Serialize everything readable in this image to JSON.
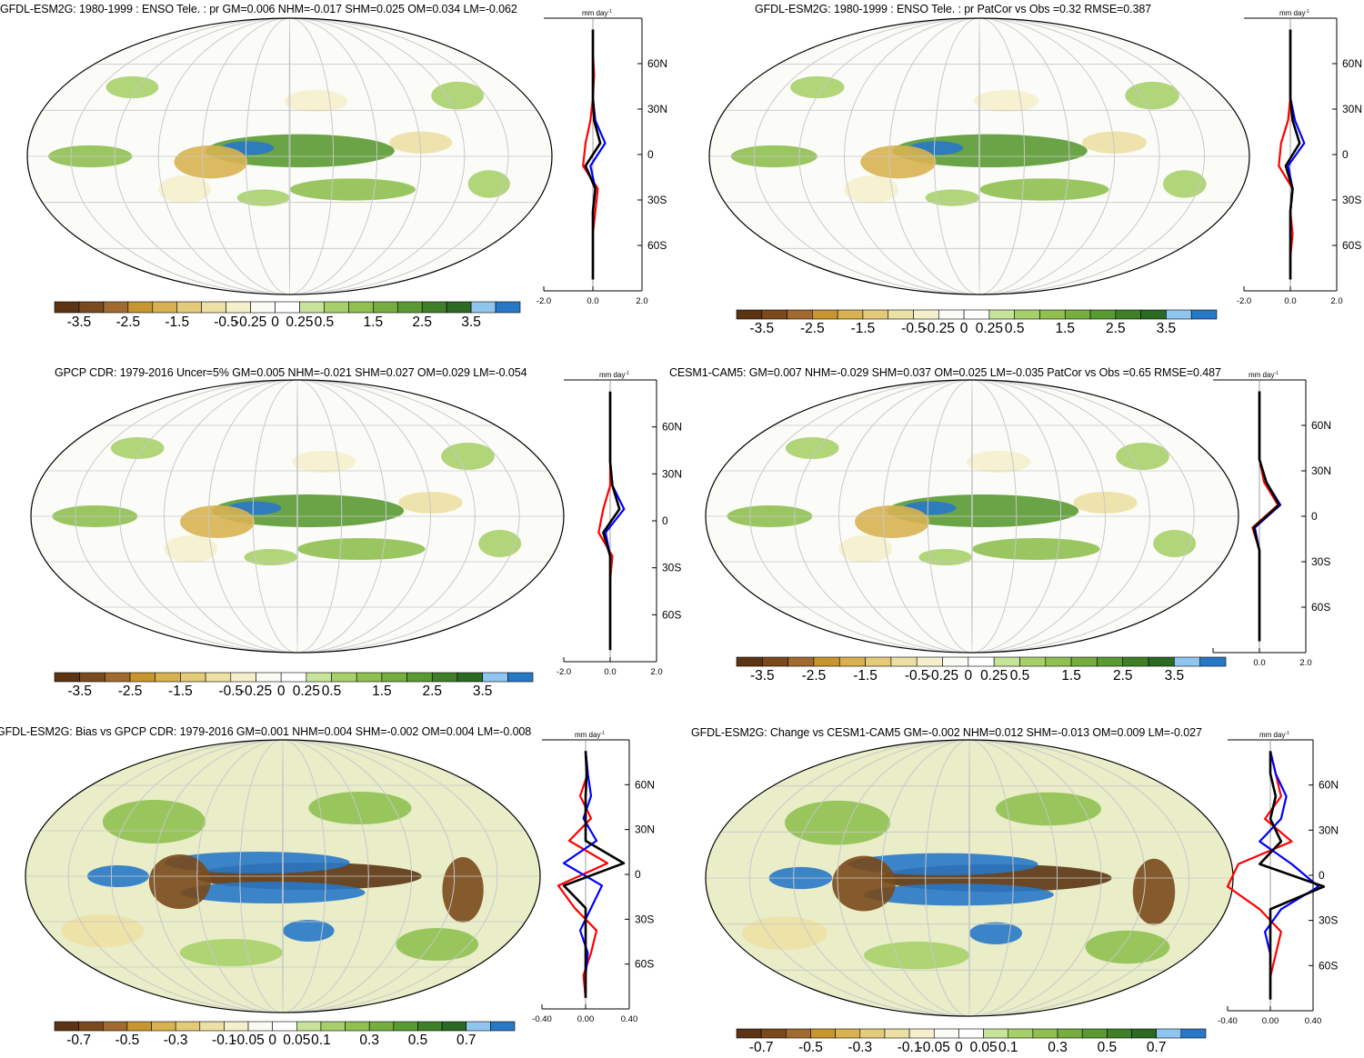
{
  "colors": {
    "palette_colors": [
      "#5c3413",
      "#7a4a1c",
      "#a06a30",
      "#c8962e",
      "#d8b250",
      "#e3cb7a",
      "#ede0a4",
      "#f5efcc",
      "#fbfbf6",
      "#ffffff",
      "#c8e39a",
      "#a8d06a",
      "#8fc050",
      "#75ad3e",
      "#5a9a32",
      "#3f7f28",
      "#2a6a22",
      "#8ec6f0",
      "#2878c8"
    ],
    "ocean_background": "#fbfbf8",
    "coastline": "#000000",
    "grid": "#c8c8c8",
    "profile_red": "#ff0000",
    "profile_blue": "#0000ff",
    "profile_black": "#000000"
  },
  "colorbars": {
    "full": [
      "-3.5",
      "-2.5",
      "-1.5",
      "-0.5",
      "-0.25",
      "0",
      "0.25",
      "0.5",
      "1.5",
      "2.5",
      "3.5"
    ],
    "diff": [
      "-0.7",
      "-0.5",
      "-0.3",
      "-0.1",
      "-0.05",
      "0",
      "0.05",
      "0.1",
      "0.3",
      "0.5",
      "0.7"
    ]
  },
  "profile_axes": {
    "unit": "mm day",
    "unit_exp": "-1",
    "lat_ticks": [
      "60N",
      "30N",
      "0",
      "30S",
      "60S"
    ],
    "x_full": [
      "-2.0",
      "0.0",
      "2.0"
    ],
    "x_diff": [
      "-0.40",
      "0.00",
      "0.40"
    ]
  },
  "chart_data": [
    {
      "type": "heatmap",
      "title": "GFDL-ESM2G: 1980-1999 : ENSO Tele. : pr GM=0.006 NHM=-0.017 SHM=0.025 OM=0.034 LM=-0.062",
      "variable": "pr",
      "colorbar": "full",
      "profile_xlim": [
        -2.0,
        2.0
      ],
      "series": [
        {
          "color": "red",
          "values": [
            0,
            0,
            0.05,
            0,
            -0.1,
            -0.3,
            -0.4,
            0.2,
            0.1,
            0,
            0,
            0
          ]
        },
        {
          "color": "blue",
          "values": [
            0,
            0,
            0,
            0,
            0.1,
            0.5,
            -0.1,
            0.1,
            0,
            0,
            0,
            0
          ]
        },
        {
          "color": "black",
          "values": [
            0,
            0,
            0,
            0,
            0.05,
            0.3,
            -0.3,
            0.1,
            0,
            0,
            0,
            0
          ]
        }
      ]
    },
    {
      "type": "heatmap",
      "title": "GFDL-ESM2G: 1980-1999 : ENSO Tele. : pr PatCor vs Obs =0.32 RMSE=0.387",
      "variable": "pr",
      "colorbar": "full",
      "profile_xlim": [
        -2.0,
        2.0
      ],
      "series": [
        {
          "color": "red",
          "values": [
            0,
            0,
            0,
            0,
            -0.1,
            -0.4,
            -0.5,
            0.1,
            0,
            0.1,
            0,
            0
          ]
        },
        {
          "color": "blue",
          "values": [
            0,
            0,
            0,
            0,
            0.2,
            0.6,
            -0.1,
            0.1,
            0,
            0,
            0,
            0
          ]
        },
        {
          "color": "black",
          "values": [
            0,
            0,
            0,
            0,
            0.1,
            0.4,
            -0.2,
            0.1,
            0,
            0,
            0,
            0
          ]
        }
      ]
    },
    {
      "type": "heatmap",
      "title": "GPCP CDR: 1979-2016 Uncer=5% GM=0.005 NHM=-0.021 SHM=0.027 OM=0.029 LM=-0.054",
      "variable": "pr",
      "colorbar": "full",
      "profile_xlim": [
        -2.0,
        2.0
      ],
      "series": [
        {
          "color": "red",
          "values": [
            0,
            0,
            0,
            0,
            0,
            -0.3,
            -0.5,
            0.1,
            0,
            0,
            0,
            0
          ]
        },
        {
          "color": "blue",
          "values": [
            0,
            0,
            0,
            0,
            0.1,
            0.6,
            -0.2,
            0,
            0,
            0,
            0,
            0
          ]
        },
        {
          "color": "black",
          "values": [
            0,
            0,
            0,
            0,
            0.1,
            0.4,
            -0.3,
            0,
            0,
            0,
            0,
            0
          ]
        }
      ]
    },
    {
      "type": "heatmap",
      "title": "CESM1-CAM5: GM=0.007 NHM=-0.029 SHM=0.037 OM=0.025 LM=-0.035 PatCor vs Obs =0.65 RMSE=0.487",
      "variable": "pr",
      "colorbar": "full",
      "profile_xlim": [
        -2.0,
        2.0
      ],
      "series": [
        {
          "color": "red",
          "values": [
            0,
            0,
            0,
            0,
            0.2,
            0.8,
            -0.3,
            0,
            0,
            0,
            0,
            0
          ]
        },
        {
          "color": "blue",
          "values": [
            0,
            0,
            0,
            0,
            0.3,
            0.9,
            -0.2,
            0,
            0,
            0,
            0,
            0
          ]
        },
        {
          "color": "black",
          "values": [
            0,
            0,
            0,
            0,
            0.3,
            0.85,
            -0.25,
            0,
            0,
            0,
            0,
            0
          ]
        }
      ]
    },
    {
      "type": "heatmap",
      "title": "GFDL-ESM2G: Bias vs GPCP CDR: 1979-2016 GM=0.001 NHM=0.004 SHM=-0.002 OM=0.004 LM=-0.008",
      "variable": "pr",
      "colorbar": "diff",
      "profile_xlim": [
        -0.4,
        0.4
      ],
      "series": [
        {
          "color": "red",
          "values": [
            0,
            0.02,
            -0.05,
            0.05,
            -0.15,
            0.2,
            -0.25,
            -0.1,
            0.1,
            0.05,
            -0.02,
            0
          ]
        },
        {
          "color": "blue",
          "values": [
            0,
            0.02,
            0.05,
            -0.02,
            0.1,
            -0.2,
            0.15,
            0.05,
            -0.05,
            0.02,
            0,
            0
          ]
        },
        {
          "color": "black",
          "values": [
            0,
            0.01,
            0,
            0,
            0,
            0.35,
            -0.2,
            0,
            0,
            0,
            0,
            0
          ]
        }
      ]
    },
    {
      "type": "heatmap",
      "title": "GFDL-ESM2G: Change vs CESM1-CAM5 GM=-0.002 NHM=0.012 SHM=-0.013 OM=0.009 LM=-0.027",
      "variable": "pr",
      "colorbar": "diff",
      "profile_xlim": [
        -0.4,
        0.4
      ],
      "series": [
        {
          "color": "red",
          "values": [
            0,
            0.05,
            0.1,
            -0.05,
            0.2,
            -0.3,
            -0.4,
            -0.1,
            0.1,
            0.05,
            0,
            0
          ]
        },
        {
          "color": "blue",
          "values": [
            0,
            0.05,
            0.15,
            0.1,
            -0.1,
            0.2,
            0.45,
            0.1,
            -0.05,
            0,
            0,
            0
          ]
        },
        {
          "color": "black",
          "values": [
            0,
            0,
            0.05,
            0,
            0.1,
            -0.1,
            0.5,
            0,
            0,
            0,
            0,
            0
          ]
        }
      ]
    }
  ]
}
